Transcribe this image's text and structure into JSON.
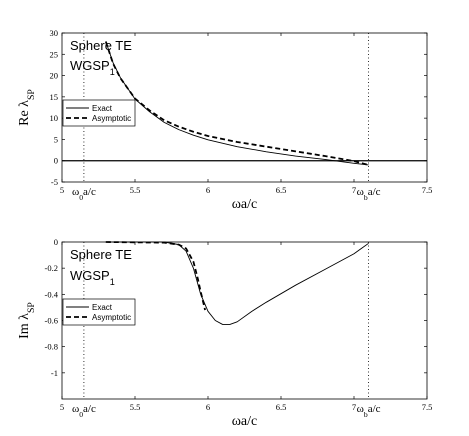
{
  "chart_data": [
    {
      "type": "line",
      "title": "",
      "xlabel": "ωa/c",
      "ylabel_main": "Re λ",
      "ylabel_sub": "SP",
      "xlim": [
        5,
        7.5
      ],
      "ylim": [
        -5,
        30
      ],
      "xticks": [
        "5",
        "5.5",
        "6",
        "6.5",
        "7",
        "7.5"
      ],
      "yticks": [
        "-5",
        "0",
        "5",
        "10",
        "15",
        "20",
        "25",
        "30"
      ],
      "xtick_values": [
        5,
        5.5,
        6,
        6.5,
        7,
        7.5
      ],
      "ytick_values": [
        -5,
        0,
        5,
        10,
        15,
        20,
        25,
        30
      ],
      "hline": 0,
      "annotation_line1": "Sphere TE",
      "annotation_line2_main": "WGSP",
      "annotation_line2_sub": "1",
      "vmarkers": [
        {
          "x": 5.15,
          "label_main": "ω",
          "label_sub": "0",
          "label_rest": "a/c"
        },
        {
          "x": 7.1,
          "label_main": "ω",
          "label_sub": "b",
          "label_rest": "a/c"
        }
      ],
      "legend": [
        "Exact",
        "Asymptotic"
      ],
      "legend_position": "left",
      "series": [
        {
          "name": "Exact",
          "style": "solid",
          "x": [
            5.3,
            5.35,
            5.4,
            5.5,
            5.6,
            5.7,
            5.8,
            5.9,
            6.0,
            6.2,
            6.4,
            6.6,
            6.8,
            7.0,
            7.1
          ],
          "y": [
            28,
            23,
            19.5,
            14.5,
            11.5,
            9.0,
            7.3,
            6.0,
            4.9,
            3.3,
            2.1,
            1.1,
            0.3,
            -0.6,
            -1.0
          ]
        },
        {
          "name": "Asymptotic",
          "style": "dashed",
          "x": [
            5.3,
            5.35,
            5.4,
            5.5,
            5.6,
            5.7,
            5.8,
            5.9,
            6.0,
            6.2,
            6.4,
            6.6,
            6.8,
            7.0,
            7.1
          ],
          "y": [
            28,
            22.8,
            19.4,
            14.6,
            11.8,
            9.5,
            8.0,
            6.8,
            5.8,
            4.4,
            3.3,
            2.2,
            1.1,
            -0.1,
            -1.0
          ]
        }
      ]
    },
    {
      "type": "line",
      "title": "",
      "xlabel": "ωa/c",
      "ylabel_main": "Im λ",
      "ylabel_sub": "SP",
      "xlim": [
        5,
        7.5
      ],
      "ylim": [
        -1.2,
        0
      ],
      "xticks": [
        "5",
        "5.5",
        "6",
        "6.5",
        "7",
        "7.5"
      ],
      "yticks": [
        "0",
        "-0.2",
        "-0.4",
        "-0.6",
        "-0.8",
        "-1"
      ],
      "xtick_values": [
        5,
        5.5,
        6,
        6.5,
        7,
        7.5
      ],
      "ytick_values": [
        0,
        -0.2,
        -0.4,
        -0.6,
        -0.8,
        -1
      ],
      "annotation_line1": "Sphere TE",
      "annotation_line2_main": "WGSP",
      "annotation_line2_sub": "1",
      "vmarkers": [
        {
          "x": 5.15,
          "label_main": "ω",
          "label_sub": "0",
          "label_rest": "a/c"
        },
        {
          "x": 7.1,
          "label_main": "ω",
          "label_sub": "b",
          "label_rest": "a/c"
        }
      ],
      "legend": [
        "Exact",
        "Asymptotic"
      ],
      "legend_position": "left",
      "series": [
        {
          "name": "Exact",
          "style": "solid",
          "x": [
            5.3,
            5.7,
            5.8,
            5.85,
            5.9,
            5.95,
            6.0,
            6.05,
            6.1,
            6.15,
            6.2,
            6.3,
            6.4,
            6.6,
            6.8,
            7.0,
            7.05,
            7.1
          ],
          "y": [
            0,
            0,
            -0.02,
            -0.07,
            -0.2,
            -0.4,
            -0.53,
            -0.6,
            -0.63,
            -0.63,
            -0.61,
            -0.53,
            -0.46,
            -0.33,
            -0.21,
            -0.09,
            -0.05,
            -0.01
          ]
        },
        {
          "name": "Asymptotic",
          "style": "dashed",
          "x": [
            5.3,
            5.7,
            5.8,
            5.85,
            5.9,
            5.93,
            5.95,
            5.98
          ],
          "y": [
            0,
            -0.005,
            -0.02,
            -0.05,
            -0.15,
            -0.28,
            -0.38,
            -0.52
          ]
        }
      ]
    }
  ],
  "colors": {
    "line": "#000000",
    "axis": "#000000"
  }
}
